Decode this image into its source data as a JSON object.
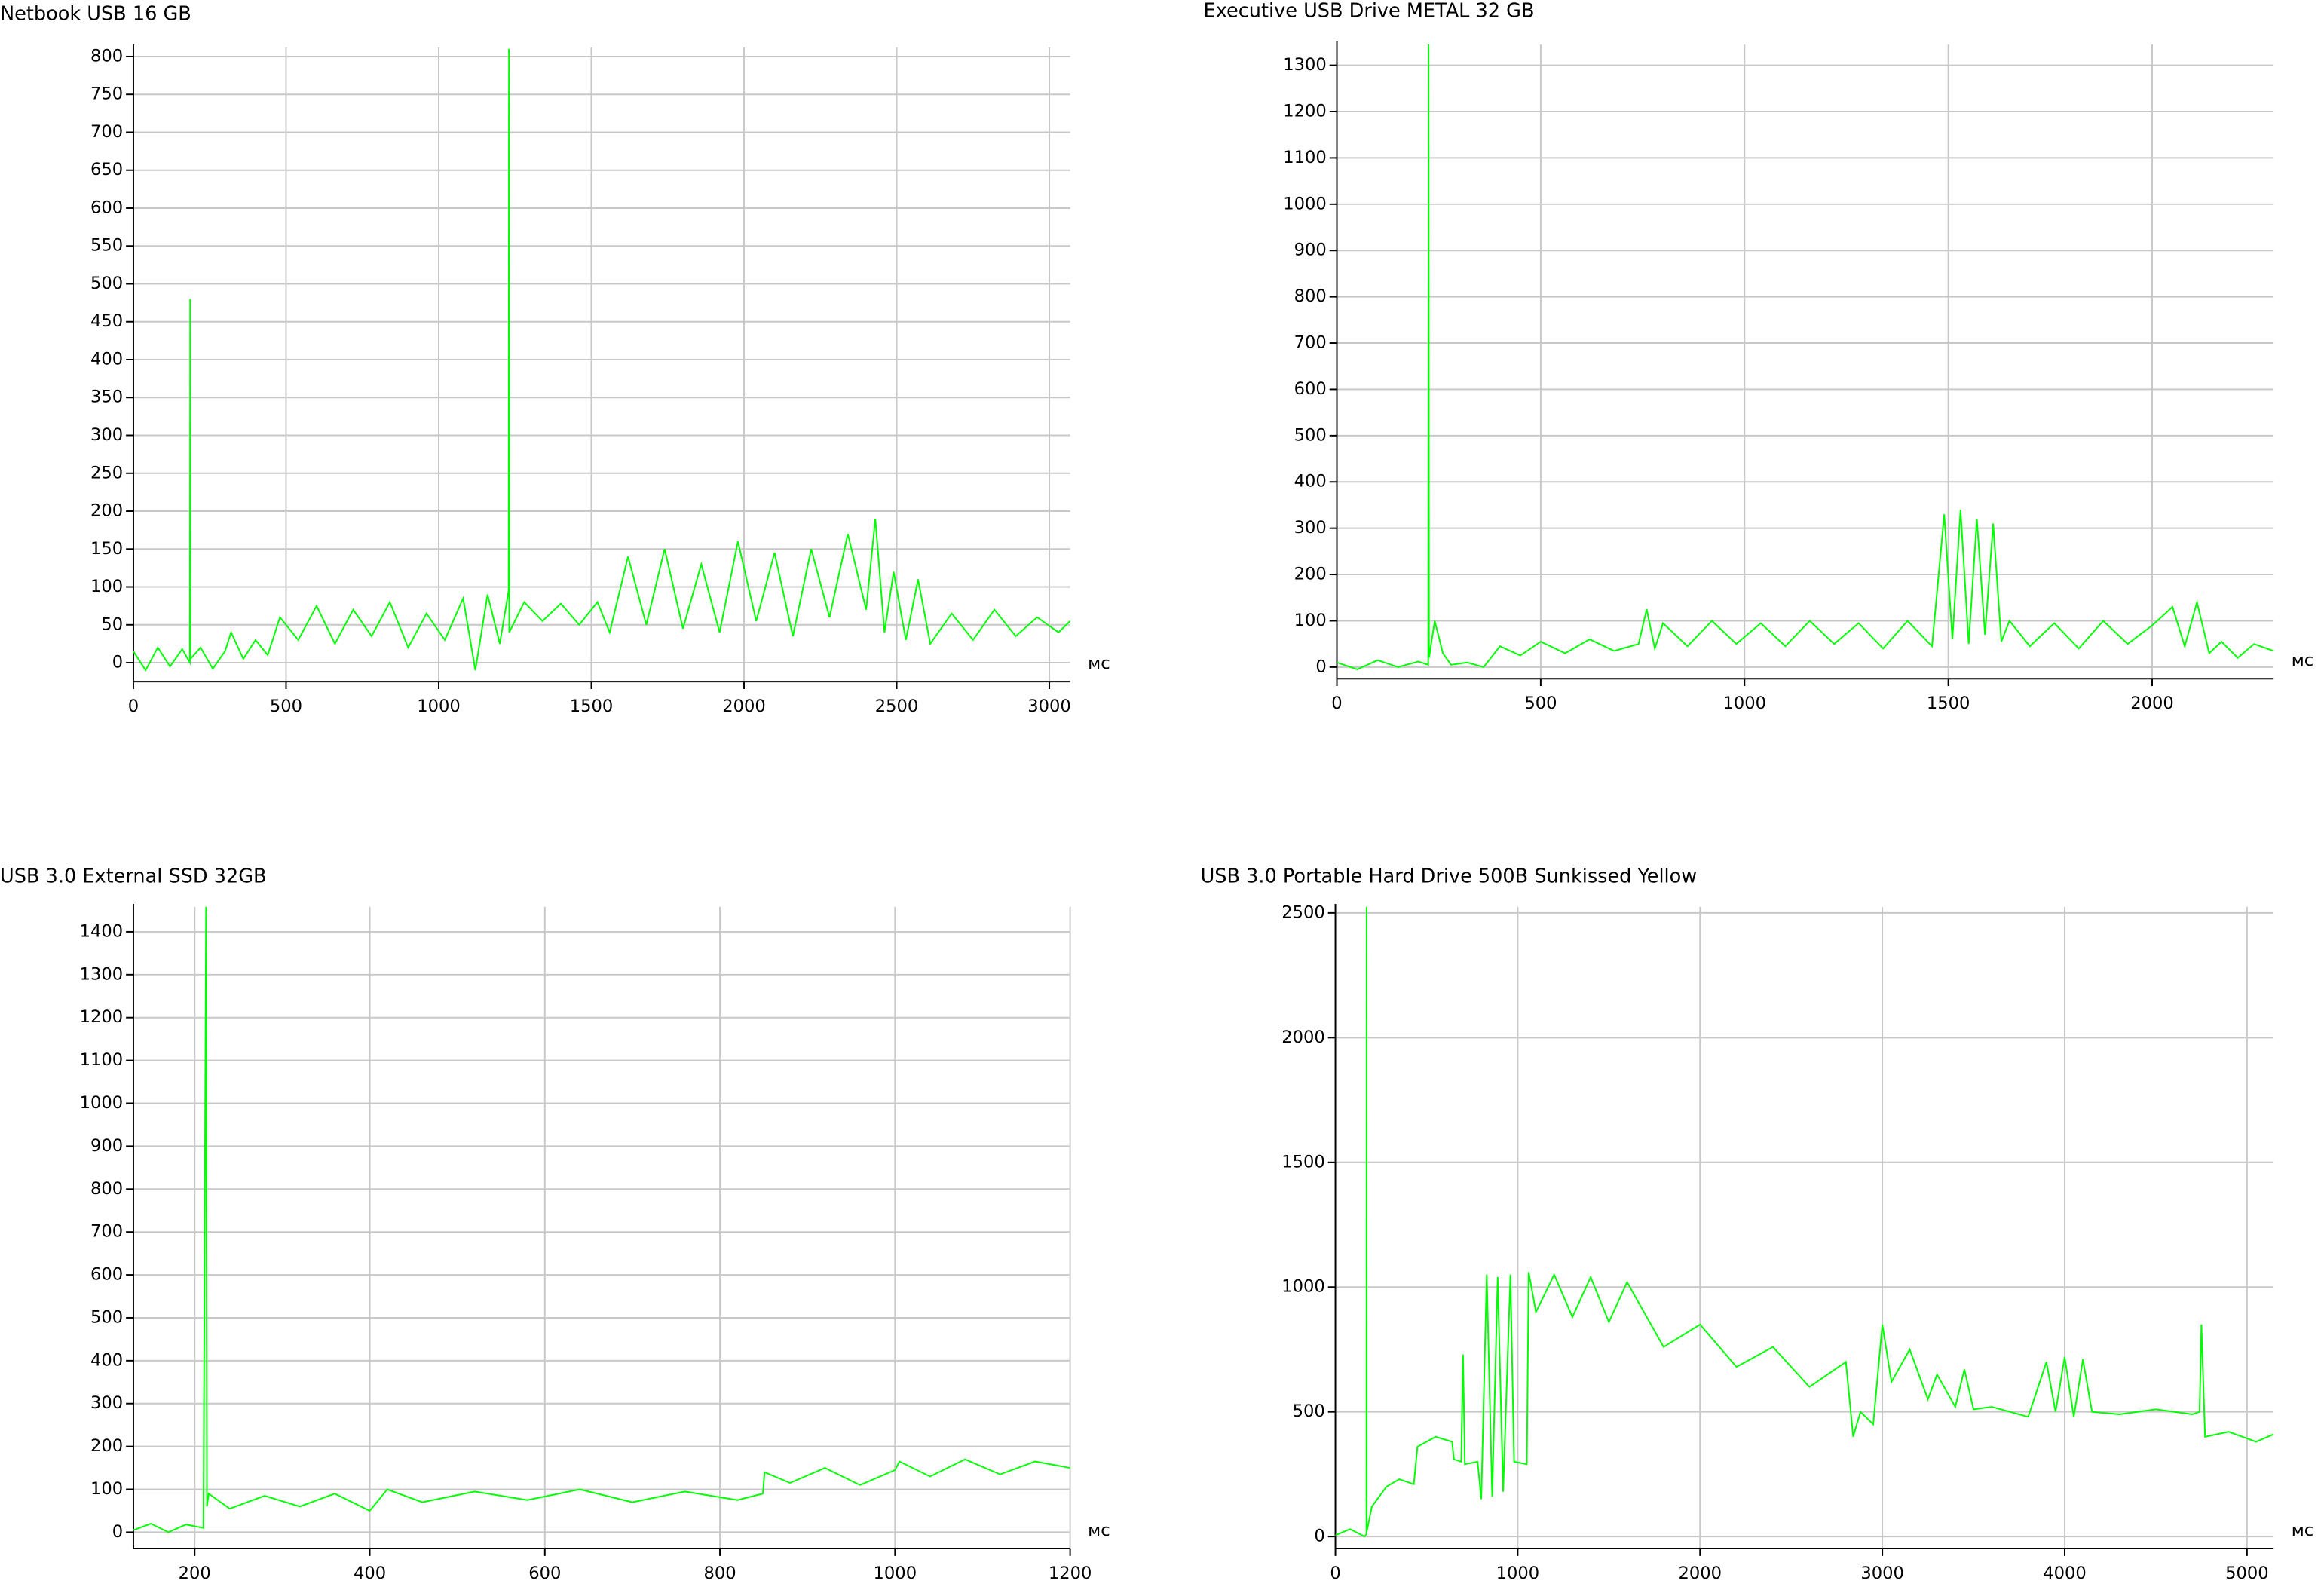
{
  "chart_data": [
    {
      "type": "line",
      "title": "Netbook USB 16 GB",
      "x_label": "мс",
      "color": "#00ff00",
      "grid": true,
      "xlim": [
        0,
        3068
      ],
      "ylim": [
        -25,
        812
      ],
      "xticks": [
        0,
        500,
        1000,
        1500,
        2000,
        2500,
        3000
      ],
      "yticks": [
        0,
        50,
        100,
        150,
        200,
        250,
        300,
        350,
        400,
        450,
        500,
        550,
        600,
        650,
        700,
        750,
        800
      ],
      "x": [
        0,
        40,
        80,
        120,
        160,
        185,
        186,
        187,
        220,
        260,
        300,
        320,
        360,
        400,
        440,
        480,
        540,
        600,
        660,
        720,
        780,
        840,
        900,
        960,
        1020,
        1080,
        1120,
        1160,
        1200,
        1229,
        1230,
        1231,
        1280,
        1340,
        1400,
        1460,
        1520,
        1560,
        1620,
        1680,
        1740,
        1800,
        1860,
        1920,
        1980,
        2040,
        2100,
        2160,
        2220,
        2280,
        2340,
        2400,
        2430,
        2460,
        2490,
        2530,
        2570,
        2610,
        2680,
        2750,
        2820,
        2890,
        2960,
        3030,
        3068
      ],
      "values": [
        15,
        -10,
        20,
        -5,
        18,
        0,
        480,
        5,
        20,
        -8,
        15,
        40,
        5,
        30,
        10,
        60,
        30,
        75,
        25,
        70,
        35,
        80,
        20,
        65,
        30,
        85,
        -10,
        90,
        25,
        95,
        810,
        40,
        80,
        55,
        78,
        50,
        80,
        40,
        140,
        50,
        150,
        45,
        130,
        40,
        160,
        55,
        145,
        35,
        150,
        60,
        170,
        70,
        190,
        40,
        120,
        30,
        110,
        25,
        65,
        30,
        70,
        35,
        60,
        40,
        55
      ]
    },
    {
      "type": "line",
      "title": "Executive USB Drive METAL 32 GB",
      "x_label": "мс",
      "color": "#00ff00",
      "grid": true,
      "xlim": [
        0,
        2298
      ],
      "ylim": [
        -25,
        1345
      ],
      "xticks": [
        0,
        500,
        1000,
        1500,
        2000
      ],
      "yticks": [
        0,
        100,
        200,
        300,
        400,
        500,
        600,
        700,
        800,
        900,
        1000,
        1100,
        1200,
        1300
      ],
      "x": [
        0,
        50,
        100,
        150,
        200,
        224,
        225,
        226,
        240,
        260,
        280,
        320,
        360,
        400,
        450,
        500,
        560,
        620,
        680,
        740,
        760,
        780,
        800,
        860,
        920,
        980,
        1040,
        1100,
        1160,
        1220,
        1280,
        1340,
        1400,
        1460,
        1490,
        1510,
        1530,
        1550,
        1570,
        1590,
        1610,
        1630,
        1650,
        1700,
        1760,
        1820,
        1880,
        1940,
        2000,
        2050,
        2080,
        2110,
        2140,
        2170,
        2210,
        2250,
        2298
      ],
      "values": [
        10,
        -5,
        15,
        0,
        12,
        5,
        1345,
        20,
        100,
        30,
        5,
        10,
        0,
        45,
        25,
        55,
        30,
        60,
        35,
        50,
        125,
        40,
        95,
        45,
        100,
        50,
        95,
        45,
        100,
        50,
        95,
        40,
        100,
        45,
        330,
        60,
        340,
        50,
        320,
        70,
        310,
        55,
        100,
        45,
        95,
        40,
        100,
        50,
        90,
        130,
        45,
        140,
        30,
        55,
        20,
        50,
        35
      ]
    },
    {
      "type": "line",
      "title": "USB 3.0 External SSD 32GB",
      "x_label": "мс",
      "color": "#00ff00",
      "grid": true,
      "xlim": [
        130,
        1200
      ],
      "ylim": [
        -38,
        1458
      ],
      "xticks": [
        200,
        400,
        600,
        800,
        1000,
        1200
      ],
      "yticks": [
        0,
        100,
        200,
        300,
        400,
        500,
        600,
        700,
        800,
        900,
        1000,
        1100,
        1200,
        1300,
        1400
      ],
      "x": [
        130,
        150,
        170,
        190,
        210,
        213,
        214,
        216,
        240,
        280,
        320,
        360,
        400,
        420,
        460,
        520,
        580,
        640,
        700,
        760,
        820,
        849,
        851,
        880,
        920,
        960,
        1000,
        1005,
        1040,
        1080,
        1120,
        1160,
        1200
      ],
      "values": [
        5,
        20,
        0,
        18,
        10,
        1458,
        60,
        90,
        55,
        85,
        60,
        90,
        50,
        100,
        70,
        95,
        75,
        100,
        70,
        95,
        75,
        90,
        140,
        115,
        150,
        110,
        145,
        165,
        130,
        170,
        135,
        165,
        150
      ]
    },
    {
      "type": "line",
      "title": "USB 3.0 Portable Hard Drive 500B Sunkissed Yellow",
      "x_label": "мс",
      "color": "#00ff00",
      "grid": true,
      "xlim": [
        0,
        5146
      ],
      "ylim": [
        -48,
        2524
      ],
      "xticks": [
        0,
        1000,
        2000,
        3000,
        4000,
        5000
      ],
      "yticks": [
        0,
        500,
        1000,
        1500,
        2000,
        2500
      ],
      "x": [
        0,
        80,
        160,
        170,
        171,
        172,
        200,
        280,
        350,
        430,
        450,
        550,
        640,
        650,
        690,
        700,
        710,
        780,
        800,
        830,
        860,
        890,
        920,
        960,
        980,
        1050,
        1060,
        1100,
        1200,
        1300,
        1400,
        1500,
        1600,
        1800,
        2000,
        2200,
        2400,
        2600,
        2800,
        2840,
        2880,
        2950,
        3000,
        3050,
        3150,
        3250,
        3300,
        3400,
        3450,
        3500,
        3600,
        3800,
        3900,
        3950,
        4000,
        4050,
        4100,
        4150,
        4300,
        4500,
        4700,
        4740,
        4750,
        4770,
        4900,
        5050,
        5146
      ],
      "values": [
        5,
        30,
        0,
        10,
        2524,
        20,
        120,
        200,
        230,
        210,
        360,
        400,
        380,
        310,
        300,
        730,
        290,
        300,
        150,
        1050,
        160,
        1040,
        180,
        1050,
        300,
        290,
        1060,
        900,
        1050,
        880,
        1040,
        860,
        1020,
        760,
        850,
        680,
        760,
        600,
        700,
        400,
        500,
        450,
        850,
        620,
        750,
        550,
        650,
        520,
        670,
        510,
        520,
        480,
        700,
        500,
        720,
        480,
        710,
        500,
        490,
        510,
        490,
        500,
        850,
        400,
        420,
        380,
        410
      ]
    }
  ]
}
